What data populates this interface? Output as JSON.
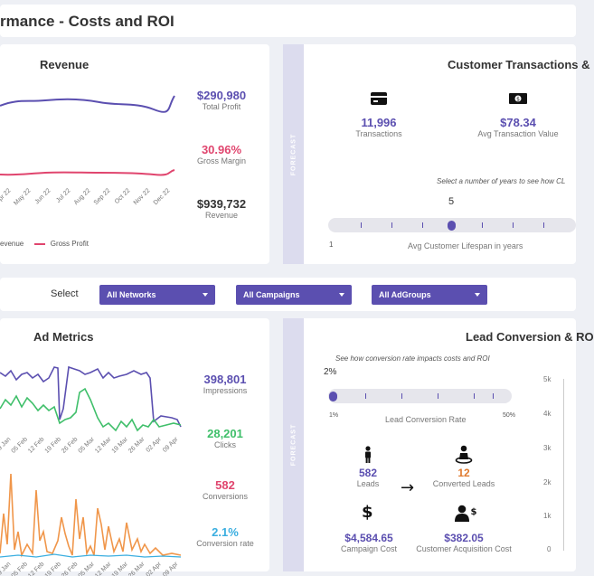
{
  "page": {
    "title": "rmance - Costs and ROI"
  },
  "revenue": {
    "title": "Revenue",
    "months": [
      "pr 22",
      "May 22",
      "Jun 22",
      "Jul 22",
      "Aug 22",
      "Sep 22",
      "Oct 22",
      "Nov 22",
      "Dec 22"
    ],
    "legend_revenue": "evenue",
    "legend_profit": "Gross Profit",
    "kpis": [
      {
        "value": "$290,980",
        "label": "Total Profit",
        "color": "#5b4fb0"
      },
      {
        "value": "30.96%",
        "label": "Gross Margin",
        "color": "#e0456e"
      },
      {
        "value": "$939,732",
        "label": "Revenue",
        "color": "#333333"
      }
    ]
  },
  "transactions": {
    "title": "Customer Transactions &",
    "forecast_label": "FORECAST",
    "transactions_value": "11,996",
    "transactions_label": "Transactions",
    "avg_value": "$78.34",
    "avg_label": "Avg Transaction Value",
    "hint": "Select a number of years to see how CL",
    "years_value": "5",
    "slider_min": "1",
    "slider_label": "Avg Customer Lifespan in years",
    "slider_level": 5
  },
  "filters": {
    "label": "Select",
    "networks": "All Networks",
    "campaigns": "All Campaigns",
    "adgroups": "All AdGroups"
  },
  "ad_metrics": {
    "title": "Ad Metrics",
    "dates_top": [
      "29 Jan",
      "05 Feb",
      "12 Feb",
      "19 Feb",
      "26 Feb",
      "05 Mar",
      "12 Mar",
      "19 Mar",
      "26 Mar",
      "02 Apr",
      "09 Apr"
    ],
    "dates_bottom": [
      "29 Jan",
      "05 Feb",
      "12 Feb",
      "19 Feb",
      "26 Feb",
      "05 Mar",
      "12 Mar",
      "19 Mar",
      "26 Mar",
      "02 Apr",
      "09 Apr"
    ],
    "kpis": [
      {
        "value": "398,801",
        "label": "Impressions",
        "color": "#5b4fb0"
      },
      {
        "value": "28,201",
        "label": "Clicks",
        "color": "#3fbf6a"
      },
      {
        "value": "582",
        "label": "Conversions",
        "color": "#e0456e"
      },
      {
        "value": "2.1%",
        "label": "Conversion rate",
        "color": "#3aaee0"
      }
    ]
  },
  "lead_conversion": {
    "title": "Lead Conversion & RO",
    "forecast_label": "FORECAST",
    "hint": "See how conversion rate impacts costs and ROI",
    "rate_value": "2%",
    "slider_min": "1%",
    "slider_max": "50%",
    "slider_label": "Lead Conversion Rate",
    "slider_level": 2,
    "leads_value": "582",
    "leads_label": "Leads",
    "converted_value": "12",
    "converted_label": "Converted Leads",
    "campaign_cost_value": "$4,584.65",
    "campaign_cost_label": "Campaign Cost",
    "cac_value": "$382.05",
    "cac_label": "Customer Acquisition Cost",
    "y_ticks": [
      "5k",
      "4k",
      "3k",
      "2k",
      "1k",
      "0"
    ]
  },
  "colors": {
    "accent": "#5b4fb0",
    "profit": "#e0456e",
    "clicks": "#3fbf6a",
    "orange": "#f0964a",
    "convrate": "#3aaee0"
  }
}
